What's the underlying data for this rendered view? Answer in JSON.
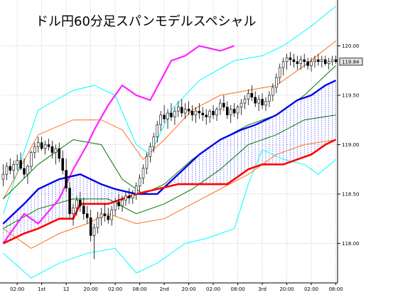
{
  "chart_data": {
    "type": "line",
    "title": "ドル円60分足スパンモデルスペシャル",
    "y_ticks": [
      "120.00",
      "119.50",
      "119.00",
      "118.50",
      "118.00"
    ],
    "y_tick_values": [
      120.0,
      119.5,
      119.0,
      118.5,
      118.0
    ],
    "ylim": [
      117.6,
      120.45
    ],
    "current_price_label": "119.84",
    "current_price": 119.84,
    "x_ticks": [
      "02:00",
      "1st",
      "12",
      "20:00",
      "02:00",
      "08:00",
      "2nd",
      "20:00",
      "02:00",
      "08:00",
      "3rd",
      "20:00",
      "02:00",
      "08:00"
    ],
    "x_tick_index": [
      4,
      11,
      18,
      25,
      32,
      39,
      46,
      53,
      60,
      67,
      74,
      81,
      88,
      95
    ],
    "n_bars": 96,
    "candles": [
      [
        118.65,
        118.8,
        118.58,
        118.7
      ],
      [
        118.7,
        118.82,
        118.64,
        118.78
      ],
      [
        118.78,
        118.86,
        118.7,
        118.74
      ],
      [
        118.74,
        118.84,
        118.66,
        118.8
      ],
      [
        118.8,
        118.9,
        118.74,
        118.84
      ],
      [
        118.84,
        118.92,
        118.74,
        118.76
      ],
      [
        118.76,
        118.86,
        118.66,
        118.7
      ],
      [
        118.7,
        118.8,
        118.6,
        118.78
      ],
      [
        118.78,
        118.94,
        118.74,
        118.92
      ],
      [
        118.92,
        119.02,
        118.86,
        118.98
      ],
      [
        118.98,
        119.08,
        118.92,
        119.02
      ],
      [
        119.02,
        119.08,
        118.94,
        118.96
      ],
      [
        118.96,
        119.04,
        118.9,
        119.0
      ],
      [
        119.0,
        119.06,
        118.94,
        118.98
      ],
      [
        118.98,
        119.04,
        118.86,
        118.92
      ],
      [
        118.92,
        119.0,
        118.8,
        118.96
      ],
      [
        118.96,
        119.02,
        118.82,
        118.86
      ],
      [
        118.86,
        118.94,
        118.7,
        118.74
      ],
      [
        118.74,
        118.86,
        118.52,
        118.56
      ],
      [
        118.56,
        118.62,
        118.26,
        118.3
      ],
      [
        118.3,
        118.4,
        118.18,
        118.36
      ],
      [
        118.36,
        118.48,
        118.28,
        118.44
      ],
      [
        118.44,
        118.52,
        118.32,
        118.38
      ],
      [
        118.38,
        118.46,
        118.24,
        118.3
      ],
      [
        118.3,
        118.38,
        118.2,
        118.26
      ],
      [
        118.26,
        118.34,
        118.02,
        118.08
      ],
      [
        118.08,
        118.2,
        117.84,
        118.16
      ],
      [
        118.16,
        118.32,
        118.1,
        118.26
      ],
      [
        118.26,
        118.36,
        118.18,
        118.3
      ],
      [
        118.3,
        118.4,
        118.22,
        118.28
      ],
      [
        118.28,
        118.36,
        118.2,
        118.24
      ],
      [
        118.24,
        118.38,
        118.18,
        118.34
      ],
      [
        118.34,
        118.46,
        118.28,
        118.42
      ],
      [
        118.42,
        118.5,
        118.34,
        118.38
      ],
      [
        118.38,
        118.48,
        118.32,
        118.44
      ],
      [
        118.44,
        118.52,
        118.38,
        118.48
      ],
      [
        118.48,
        118.56,
        118.4,
        118.46
      ],
      [
        118.46,
        118.54,
        118.4,
        118.5
      ],
      [
        118.5,
        118.62,
        118.44,
        118.58
      ],
      [
        118.58,
        118.7,
        118.52,
        118.66
      ],
      [
        118.66,
        118.8,
        118.6,
        118.76
      ],
      [
        118.76,
        118.92,
        118.7,
        118.88
      ],
      [
        118.88,
        119.02,
        118.82,
        118.98
      ],
      [
        118.98,
        119.12,
        118.92,
        119.08
      ],
      [
        119.08,
        119.24,
        119.02,
        119.2
      ],
      [
        119.2,
        119.34,
        119.14,
        119.3
      ],
      [
        119.3,
        119.4,
        119.22,
        119.26
      ],
      [
        119.26,
        119.36,
        119.16,
        119.32
      ],
      [
        119.32,
        119.42,
        119.24,
        119.28
      ],
      [
        119.28,
        119.38,
        119.2,
        119.34
      ],
      [
        119.34,
        119.44,
        119.28,
        119.38
      ],
      [
        119.38,
        119.46,
        119.28,
        119.32
      ],
      [
        119.32,
        119.42,
        119.26,
        119.36
      ],
      [
        119.36,
        119.44,
        119.3,
        119.34
      ],
      [
        119.34,
        119.4,
        119.24,
        119.3
      ],
      [
        119.3,
        119.38,
        119.22,
        119.34
      ],
      [
        119.34,
        119.42,
        119.26,
        119.32
      ],
      [
        119.32,
        119.38,
        119.24,
        119.3
      ],
      [
        119.3,
        119.36,
        119.2,
        119.28
      ],
      [
        119.28,
        119.36,
        119.22,
        119.34
      ],
      [
        119.34,
        119.4,
        119.26,
        119.3
      ],
      [
        119.3,
        119.38,
        119.24,
        119.36
      ],
      [
        119.36,
        119.46,
        119.3,
        119.42
      ],
      [
        119.42,
        119.5,
        119.34,
        119.38
      ],
      [
        119.38,
        119.44,
        119.26,
        119.3
      ],
      [
        119.3,
        119.4,
        119.22,
        119.36
      ],
      [
        119.36,
        119.42,
        119.28,
        119.32
      ],
      [
        119.32,
        119.4,
        119.26,
        119.38
      ],
      [
        119.38,
        119.46,
        119.3,
        119.42
      ],
      [
        119.42,
        119.5,
        119.36,
        119.46
      ],
      [
        119.46,
        119.56,
        119.4,
        119.52
      ],
      [
        119.52,
        119.6,
        119.44,
        119.48
      ],
      [
        119.48,
        119.54,
        119.38,
        119.42
      ],
      [
        119.42,
        119.5,
        119.34,
        119.46
      ],
      [
        119.46,
        119.52,
        119.36,
        119.4
      ],
      [
        119.4,
        119.48,
        119.34,
        119.44
      ],
      [
        119.44,
        119.54,
        119.38,
        119.5
      ],
      [
        119.5,
        119.62,
        119.44,
        119.58
      ],
      [
        119.58,
        119.72,
        119.52,
        119.68
      ],
      [
        119.68,
        119.82,
        119.62,
        119.78
      ],
      [
        119.78,
        119.88,
        119.7,
        119.84
      ],
      [
        119.84,
        119.92,
        119.76,
        119.88
      ],
      [
        119.88,
        119.94,
        119.8,
        119.86
      ],
      [
        119.86,
        119.92,
        119.78,
        119.84
      ],
      [
        119.84,
        119.9,
        119.76,
        119.82
      ],
      [
        119.82,
        119.9,
        119.76,
        119.86
      ],
      [
        119.86,
        119.92,
        119.78,
        119.84
      ],
      [
        119.84,
        119.88,
        119.76,
        119.8
      ],
      [
        119.8,
        119.88,
        119.74,
        119.84
      ],
      [
        119.84,
        119.9,
        119.78,
        119.86
      ],
      [
        119.86,
        119.92,
        119.8,
        119.84
      ],
      [
        119.84,
        119.9,
        119.78,
        119.86
      ],
      [
        119.86,
        119.9,
        119.8,
        119.82
      ],
      [
        119.82,
        119.88,
        119.76,
        119.84
      ],
      [
        119.84,
        119.9,
        119.8,
        119.86
      ],
      [
        119.86,
        119.9,
        119.82,
        119.84
      ]
    ],
    "series": [
      {
        "color": "#00ffff",
        "points": [
          [
            0,
            118.3
          ],
          [
            10,
            119.35
          ],
          [
            20,
            119.55
          ],
          [
            26,
            119.6
          ],
          [
            32,
            119.5
          ],
          [
            38,
            119.0
          ],
          [
            42,
            118.9
          ],
          [
            48,
            119.35
          ],
          [
            56,
            119.65
          ],
          [
            66,
            119.85
          ],
          [
            74,
            119.9
          ],
          [
            80,
            120.0
          ],
          [
            88,
            120.2
          ],
          [
            95,
            120.4
          ]
        ]
      },
      {
        "color": "#00ffff",
        "points": [
          [
            0,
            117.9
          ],
          [
            8,
            117.65
          ],
          [
            16,
            117.8
          ],
          [
            24,
            117.9
          ],
          [
            32,
            117.95
          ],
          [
            38,
            117.7
          ],
          [
            44,
            117.8
          ],
          [
            52,
            118.0
          ],
          [
            58,
            118.05
          ],
          [
            66,
            118.15
          ],
          [
            70,
            118.6
          ],
          [
            74,
            118.95
          ],
          [
            80,
            118.85
          ],
          [
            86,
            118.8
          ],
          [
            90,
            118.7
          ],
          [
            95,
            118.85
          ]
        ]
      },
      {
        "color": "#ff6f1e",
        "points": [
          [
            0,
            118.45
          ],
          [
            10,
            119.1
          ],
          [
            20,
            119.25
          ],
          [
            28,
            119.25
          ],
          [
            34,
            119.15
          ],
          [
            40,
            118.85
          ],
          [
            46,
            119.05
          ],
          [
            54,
            119.35
          ],
          [
            62,
            119.5
          ],
          [
            70,
            119.55
          ],
          [
            78,
            119.6
          ],
          [
            86,
            119.8
          ],
          [
            95,
            120.05
          ]
        ]
      },
      {
        "color": "#ff6f1e",
        "points": [
          [
            0,
            118.15
          ],
          [
            8,
            117.95
          ],
          [
            16,
            118.1
          ],
          [
            24,
            118.2
          ],
          [
            30,
            118.3
          ],
          [
            38,
            118.2
          ],
          [
            46,
            118.25
          ],
          [
            54,
            118.4
          ],
          [
            62,
            118.55
          ],
          [
            70,
            118.7
          ],
          [
            78,
            118.9
          ],
          [
            86,
            119.0
          ],
          [
            95,
            119.05
          ]
        ]
      },
      {
        "color": "#007700",
        "points": [
          [
            0,
            118.45
          ],
          [
            10,
            118.8
          ],
          [
            20,
            119.05
          ],
          [
            28,
            119.0
          ],
          [
            34,
            118.65
          ],
          [
            40,
            118.5
          ],
          [
            46,
            118.6
          ],
          [
            54,
            118.85
          ],
          [
            62,
            119.05
          ],
          [
            70,
            119.2
          ],
          [
            78,
            119.3
          ],
          [
            86,
            119.5
          ],
          [
            95,
            119.8
          ]
        ]
      },
      {
        "color": "#007700",
        "points": [
          [
            0,
            118.15
          ],
          [
            10,
            118.35
          ],
          [
            20,
            118.45
          ],
          [
            30,
            118.45
          ],
          [
            38,
            118.3
          ],
          [
            46,
            118.4
          ],
          [
            54,
            118.55
          ],
          [
            62,
            118.75
          ],
          [
            70,
            119.0
          ],
          [
            78,
            119.1
          ],
          [
            86,
            119.25
          ],
          [
            95,
            119.3
          ]
        ]
      },
      {
        "color": "#ff22ff",
        "points": [
          [
            0,
            118.0
          ],
          [
            6,
            118.3
          ],
          [
            10,
            118.2
          ],
          [
            16,
            118.45
          ],
          [
            20,
            118.75
          ],
          [
            24,
            119.0
          ],
          [
            26,
            119.15
          ],
          [
            30,
            119.4
          ],
          [
            34,
            119.6
          ],
          [
            38,
            119.5
          ],
          [
            42,
            119.45
          ],
          [
            48,
            119.85
          ],
          [
            52,
            119.9
          ],
          [
            56,
            120.0
          ],
          [
            62,
            119.95
          ],
          [
            66,
            120.0
          ]
        ]
      },
      {
        "color": "#0000ee",
        "points": [
          [
            0,
            118.2
          ],
          [
            6,
            118.4
          ],
          [
            10,
            118.55
          ],
          [
            16,
            118.65
          ],
          [
            22,
            118.7
          ],
          [
            28,
            118.6
          ],
          [
            32,
            118.55
          ],
          [
            38,
            118.5
          ],
          [
            44,
            118.5
          ],
          [
            50,
            118.7
          ],
          [
            56,
            118.9
          ],
          [
            62,
            119.05
          ],
          [
            68,
            119.15
          ],
          [
            72,
            119.2
          ],
          [
            78,
            119.3
          ],
          [
            84,
            119.45
          ],
          [
            88,
            119.5
          ],
          [
            92,
            119.6
          ],
          [
            95,
            119.65
          ]
        ]
      },
      {
        "color": "#ff0000",
        "points": [
          [
            0,
            118.0
          ],
          [
            6,
            118.1
          ],
          [
            10,
            118.15
          ],
          [
            16,
            118.25
          ],
          [
            20,
            118.25
          ],
          [
            22,
            118.4
          ],
          [
            30,
            118.4
          ],
          [
            38,
            118.5
          ],
          [
            44,
            118.55
          ],
          [
            50,
            118.6
          ],
          [
            58,
            118.6
          ],
          [
            62,
            118.6
          ],
          [
            64,
            118.6
          ],
          [
            70,
            118.75
          ],
          [
            74,
            118.8
          ],
          [
            80,
            118.8
          ],
          [
            84,
            118.85
          ],
          [
            88,
            118.9
          ],
          [
            92,
            119.0
          ],
          [
            95,
            119.05
          ]
        ]
      }
    ]
  }
}
